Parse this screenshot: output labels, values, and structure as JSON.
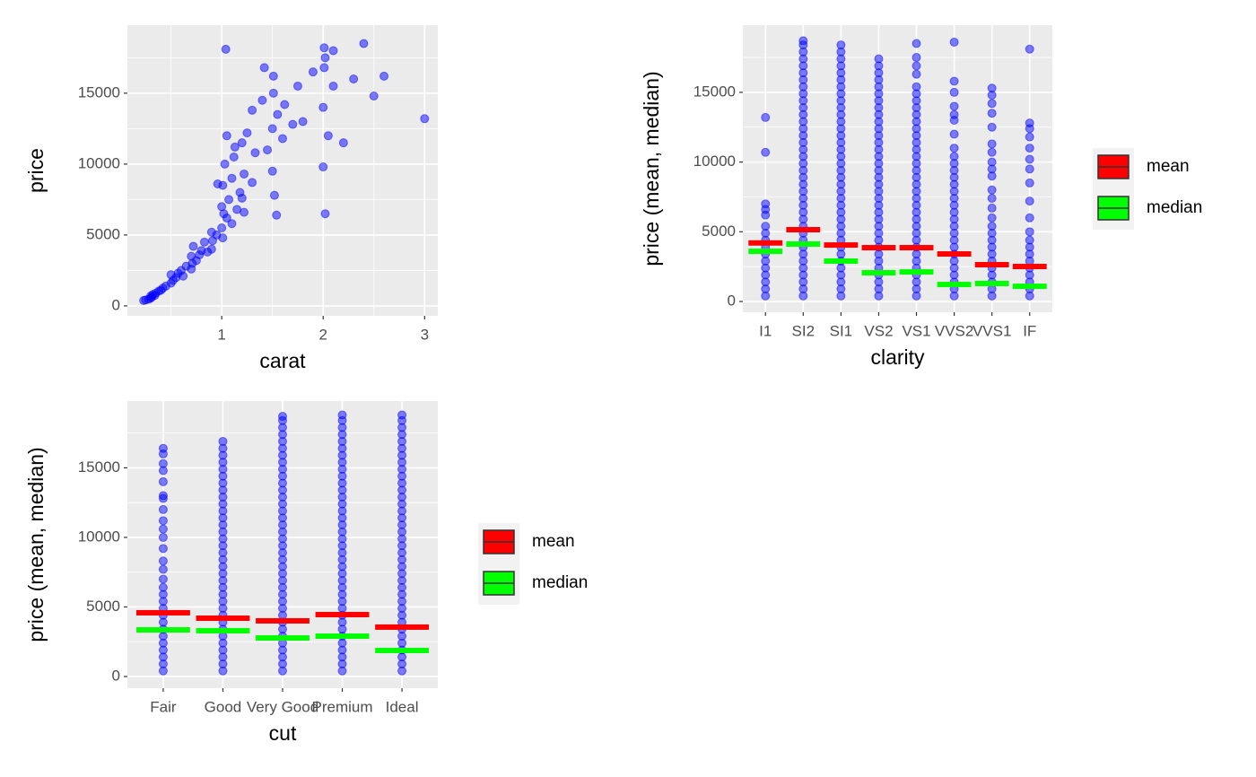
{
  "chart_data": [
    {
      "type": "scatter",
      "x_label": "carat",
      "y_label": "price",
      "color": "#0000ff",
      "x": [
        0.23,
        0.25,
        0.28,
        0.3,
        0.3,
        0.31,
        0.32,
        0.34,
        0.35,
        0.38,
        0.4,
        0.42,
        0.45,
        0.5,
        0.5,
        0.52,
        0.55,
        0.57,
        0.6,
        0.62,
        0.65,
        0.7,
        0.7,
        0.71,
        0.72,
        0.75,
        0.78,
        0.8,
        0.83,
        0.86,
        0.9,
        0.9,
        0.91,
        0.95,
        1.0,
        1.0,
        1.01,
        1.01,
        1.02,
        1.03,
        1.05,
        1.05,
        1.07,
        1.1,
        1.1,
        1.12,
        1.15,
        1.18,
        1.2,
        1.2,
        1.22,
        1.25,
        1.3,
        1.3,
        1.33,
        1.4,
        1.45,
        1.5,
        1.5,
        1.51,
        1.51,
        1.52,
        1.55,
        1.6,
        1.62,
        1.7,
        1.75,
        1.8,
        1.9,
        2.0,
        2.0,
        2.01,
        2.01,
        2.02,
        2.05,
        2.1,
        2.1,
        2.2,
        2.3,
        2.4,
        2.5,
        2.6,
        3.0,
        1.04,
        1.22,
        1.42,
        2.02,
        1.54,
        0.96,
        1.13
      ],
      "y": [
        380,
        420,
        470,
        550,
        700,
        620,
        800,
        740,
        900,
        1050,
        1100,
        1250,
        1400,
        1600,
        2200,
        1800,
        2000,
        2300,
        2500,
        2100,
        2800,
        2600,
        3500,
        3000,
        4200,
        3200,
        3600,
        3900,
        4500,
        3800,
        4000,
        5200,
        4600,
        5000,
        5500,
        7000,
        8500,
        4800,
        6500,
        10000,
        6200,
        12000,
        7500,
        9000,
        5800,
        10500,
        6800,
        8000,
        7600,
        11500,
        9300,
        12200,
        8700,
        13800,
        10800,
        14500,
        11000,
        9500,
        12500,
        15000,
        16200,
        7800,
        13500,
        11800,
        14200,
        12800,
        15500,
        13000,
        16500,
        9800,
        14000,
        16800,
        18200,
        17500,
        12000,
        15500,
        18000,
        11500,
        16000,
        18500,
        14800,
        16200,
        13200,
        18100,
        6600,
        16800,
        6500,
        6400,
        8600,
        11200
      ],
      "xlim": [
        0.07,
        3.13
      ],
      "xticks": [
        1,
        2,
        3
      ],
      "ylim": [
        -700,
        19800
      ],
      "yticks": [
        0,
        5000,
        10000,
        15000
      ],
      "grid": true
    },
    {
      "type": "strip",
      "x_label": "clarity",
      "y_label": "price (mean, median)",
      "color": "#0000ff",
      "categories": [
        "I1",
        "SI2",
        "SI1",
        "VS2",
        "VS1",
        "VVS2",
        "VVS1",
        "IF"
      ],
      "points": [
        [
          400,
          900,
          1400,
          1900,
          2400,
          2900,
          3400,
          3900,
          4400,
          4900,
          5400,
          6200,
          6600,
          7000,
          10700,
          13200
        ],
        [
          400,
          900,
          1400,
          1900,
          2400,
          2900,
          3400,
          3900,
          4400,
          4900,
          5400,
          5900,
          6400,
          6900,
          7400,
          7900,
          8400,
          8900,
          9400,
          9900,
          10400,
          10900,
          11400,
          11900,
          12400,
          12900,
          13400,
          13900,
          14400,
          14900,
          15400,
          15900,
          16400,
          16900,
          17400,
          17900,
          18400,
          18700
        ],
        [
          400,
          900,
          1400,
          1900,
          2400,
          2900,
          3400,
          3900,
          4400,
          4900,
          5400,
          5900,
          6400,
          6900,
          7400,
          7900,
          8400,
          8900,
          9400,
          9900,
          10400,
          10900,
          11400,
          11900,
          12400,
          12900,
          13400,
          13900,
          14400,
          14900,
          15400,
          15900,
          16400,
          16900,
          17400,
          17900,
          18400
        ],
        [
          400,
          900,
          1400,
          1900,
          2400,
          2900,
          3400,
          3900,
          4400,
          4900,
          5400,
          5900,
          6400,
          6900,
          7400,
          7900,
          8400,
          8900,
          9400,
          9900,
          10400,
          10900,
          11400,
          11900,
          12400,
          12900,
          13400,
          13900,
          14400,
          14900,
          15400,
          15900,
          16400,
          16900,
          17400
        ],
        [
          400,
          900,
          1400,
          1900,
          2400,
          2900,
          3400,
          3900,
          4400,
          4900,
          5400,
          5900,
          6400,
          6900,
          7400,
          7900,
          8400,
          8900,
          9400,
          9900,
          10400,
          10900,
          11400,
          11900,
          12400,
          12900,
          13400,
          13900,
          14400,
          14900,
          15400,
          16300,
          16900,
          17500,
          18500
        ],
        [
          400,
          900,
          1400,
          1900,
          2400,
          2900,
          3400,
          3900,
          4400,
          4900,
          5400,
          5900,
          6400,
          6900,
          7400,
          7900,
          8400,
          8900,
          9400,
          9900,
          10400,
          11000,
          12000,
          13000,
          13400,
          14000,
          15000,
          15800,
          18600
        ],
        [
          400,
          900,
          1400,
          1900,
          2400,
          2900,
          3400,
          3900,
          4400,
          4900,
          5400,
          6000,
          6700,
          7400,
          8000,
          9000,
          9500,
          10000,
          10700,
          11300,
          12500,
          13500,
          14200,
          14800,
          15300
        ],
        [
          400,
          900,
          1400,
          1900,
          2400,
          2900,
          3400,
          3900,
          4400,
          5000,
          6000,
          7200,
          8500,
          9500,
          10200,
          11000,
          11800,
          12400,
          12800,
          18100
        ]
      ],
      "series": [
        {
          "name": "mean",
          "color": "#ff0000",
          "values": [
            4200,
            5150,
            4050,
            3860,
            3860,
            3410,
            2640,
            2510
          ]
        },
        {
          "name": "median",
          "color": "#00ff00",
          "values": [
            3600,
            4120,
            2900,
            2060,
            2120,
            1220,
            1290,
            1090
          ]
        }
      ],
      "ylim": [
        -770,
        19820
      ],
      "yticks": [
        0,
        5000,
        10000,
        15000
      ],
      "grid": true,
      "legend": "right"
    },
    {
      "type": "strip",
      "x_label": "cut",
      "y_label": "price (mean, median)",
      "color": "#0000ff",
      "categories": [
        "Fair",
        "Good",
        "Very Good",
        "Premium",
        "Ideal"
      ],
      "points": [
        [
          400,
          900,
          1400,
          1900,
          2400,
          2900,
          3400,
          3900,
          4400,
          4900,
          5400,
          5900,
          6400,
          7000,
          7700,
          8300,
          9200,
          10000,
          10600,
          11200,
          12000,
          12800,
          13000,
          14000,
          14800,
          15300,
          16000,
          16400
        ],
        [
          400,
          900,
          1400,
          1900,
          2400,
          2900,
          3400,
          3900,
          4400,
          4900,
          5400,
          5900,
          6400,
          6900,
          7400,
          7900,
          8400,
          8900,
          9400,
          9900,
          10400,
          10900,
          11400,
          11900,
          12400,
          12900,
          13400,
          13900,
          14400,
          14900,
          15400,
          15900,
          16400,
          16900
        ],
        [
          400,
          900,
          1400,
          1900,
          2400,
          2900,
          3400,
          3900,
          4400,
          4900,
          5400,
          5900,
          6400,
          6900,
          7400,
          7900,
          8400,
          8900,
          9400,
          9900,
          10400,
          10900,
          11400,
          11900,
          12400,
          12900,
          13400,
          13900,
          14400,
          14900,
          15400,
          15900,
          16400,
          16900,
          17400,
          17900,
          18400,
          18700
        ],
        [
          400,
          900,
          1400,
          1900,
          2400,
          2900,
          3400,
          3900,
          4400,
          4900,
          5400,
          5900,
          6400,
          6900,
          7400,
          7900,
          8400,
          8900,
          9400,
          9900,
          10400,
          10900,
          11400,
          11900,
          12400,
          12900,
          13400,
          13900,
          14400,
          14900,
          15400,
          15900,
          16400,
          16900,
          17400,
          17900,
          18400,
          18800
        ],
        [
          400,
          900,
          1400,
          1900,
          2400,
          2900,
          3400,
          3900,
          4400,
          4900,
          5400,
          5900,
          6400,
          6900,
          7400,
          7900,
          8400,
          8900,
          9400,
          9900,
          10400,
          10900,
          11400,
          11900,
          12400,
          12900,
          13400,
          13900,
          14400,
          14900,
          15400,
          15900,
          16400,
          16900,
          17400,
          17900,
          18400,
          18800
        ]
      ],
      "series": [
        {
          "name": "mean",
          "color": "#ff0000",
          "values": [
            4580,
            4190,
            4000,
            4450,
            3550
          ]
        },
        {
          "name": "median",
          "color": "#00ff00",
          "values": [
            3350,
            3290,
            2770,
            2900,
            1870
          ]
        }
      ],
      "ylim": [
        -840,
        19800
      ],
      "yticks": [
        0,
        5000,
        10000,
        15000
      ],
      "grid": true,
      "legend": "right"
    }
  ]
}
